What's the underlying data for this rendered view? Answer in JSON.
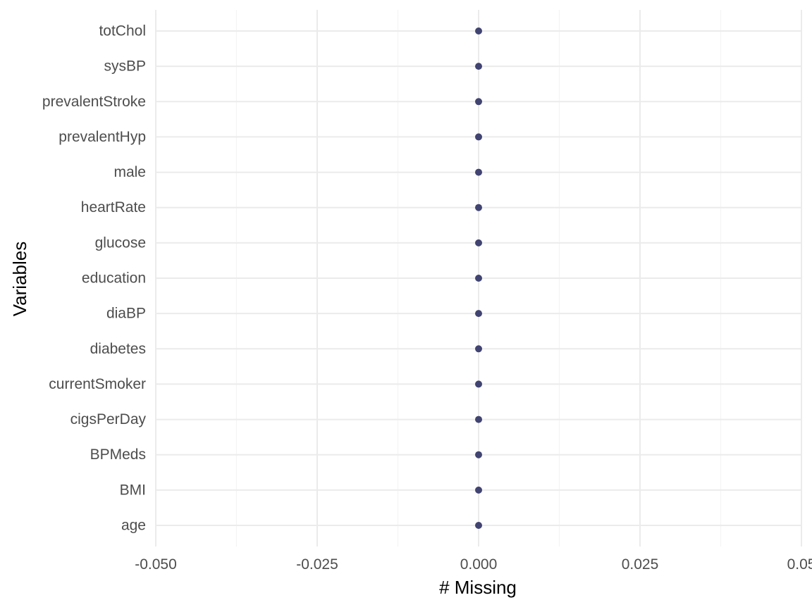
{
  "chart_data": {
    "type": "scatter",
    "title": "",
    "xlabel": "# Missing",
    "ylabel": "Variables",
    "categories": [
      "age",
      "BMI",
      "BPMeds",
      "cigsPerDay",
      "currentSmoker",
      "diabetes",
      "diaBP",
      "education",
      "glucose",
      "heartRate",
      "male",
      "prevalentHyp",
      "prevalentStroke",
      "sysBP",
      "totChol"
    ],
    "values": [
      0,
      0,
      0,
      0,
      0,
      0,
      0,
      0,
      0,
      0,
      0,
      0,
      0,
      0,
      0
    ],
    "xlim": [
      -0.05,
      0.05
    ],
    "x_ticks": [
      -0.05,
      -0.025,
      0.0,
      0.025,
      0.05
    ],
    "x_tick_labels": [
      "-0.050",
      "-0.025",
      "0.000",
      "0.025",
      "0.05"
    ],
    "grid": true,
    "point_color": "#414471",
    "grid_major_color": "#ebebeb",
    "grid_minor_color": "#f4f4f4",
    "axis_text_color": "#4d4d4d",
    "axis_title_color": "#000000"
  }
}
